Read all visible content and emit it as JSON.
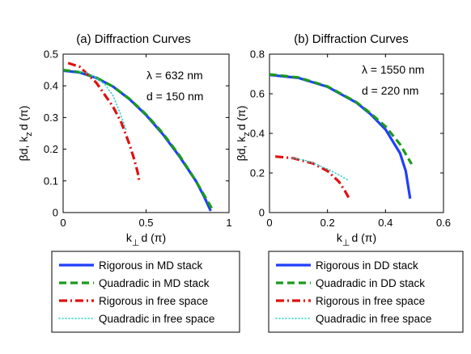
{
  "chart_data": [
    {
      "type": "line",
      "title": "(a)  Diffraction Curves",
      "xlabel_main": "k",
      "xlabel_sub": "⊥",
      "xlabel_rest": "d (π)",
      "ylabel_main": "βd,  k",
      "ylabel_sub": "z",
      "ylabel_rest": "d (π)",
      "xlim": [
        0,
        1
      ],
      "ylim": [
        0,
        0.5
      ],
      "xticks": [
        0,
        0.5,
        1
      ],
      "xtick_labels": [
        "0",
        "0.5",
        "1"
      ],
      "yticks": [
        0,
        0.1,
        0.2,
        0.3,
        0.4,
        0.5
      ],
      "ytick_labels": [
        "0",
        "0.1",
        "0.2",
        "0.3",
        "0.4",
        "0.5"
      ],
      "annotations": [
        "λ = 632 nm",
        "d = 150 nm"
      ],
      "series": [
        {
          "name": "Rigorous in MD stack",
          "color": "#1f3fff",
          "style": "solid",
          "x": [
            0,
            0.1,
            0.2,
            0.3,
            0.4,
            0.5,
            0.6,
            0.7,
            0.8,
            0.85,
            0.89
          ],
          "y": [
            0.448,
            0.442,
            0.425,
            0.398,
            0.358,
            0.308,
            0.248,
            0.178,
            0.1,
            0.05,
            0.005
          ]
        },
        {
          "name": "Quadradic in MD stack",
          "color": "#1a9a1a",
          "style": "dashed",
          "x": [
            0,
            0.1,
            0.2,
            0.3,
            0.4,
            0.5,
            0.6,
            0.7,
            0.8,
            0.9
          ],
          "y": [
            0.45,
            0.443,
            0.426,
            0.398,
            0.359,
            0.31,
            0.251,
            0.181,
            0.1,
            0.01
          ]
        },
        {
          "name": "Rigorous in free space",
          "color": "#e01010",
          "style": "dashdot",
          "x": [
            0.03,
            0.1,
            0.2,
            0.3,
            0.35,
            0.4,
            0.43,
            0.45,
            0.46
          ],
          "y": [
            0.472,
            0.46,
            0.41,
            0.335,
            0.285,
            0.215,
            0.165,
            0.125,
            0.095
          ]
        },
        {
          "name": "Quadradic in free space",
          "color": "#2bd3cf",
          "style": "dotted",
          "x": [
            0.1,
            0.15,
            0.2,
            0.25,
            0.3,
            0.35,
            0.38
          ],
          "y": [
            0.445,
            0.44,
            0.425,
            0.405,
            0.37,
            0.305,
            0.26
          ]
        }
      ]
    },
    {
      "type": "line",
      "title": "(b)  Diffraction Curves",
      "xlabel_main": "k",
      "xlabel_sub": "⊥",
      "xlabel_rest": "d (π)",
      "ylabel_main": "βd,  k",
      "ylabel_sub": "z",
      "ylabel_rest": "d (π)",
      "xlim": [
        0,
        0.6
      ],
      "ylim": [
        0,
        0.8
      ],
      "xticks": [
        0,
        0.2,
        0.4,
        0.6
      ],
      "xtick_labels": [
        "0",
        "0.2",
        "0.4",
        "0.6"
      ],
      "yticks": [
        0,
        0.2,
        0.4,
        0.6,
        0.8
      ],
      "ytick_labels": [
        "0",
        "0.2",
        "0.4",
        "0.6",
        "0.8"
      ],
      "annotations": [
        "λ = 1550 nm",
        "d = 220 nm"
      ],
      "series": [
        {
          "name": "Rigorous in DD stack",
          "color": "#1f3fff",
          "style": "solid",
          "x": [
            0,
            0.1,
            0.2,
            0.3,
            0.35,
            0.4,
            0.45,
            0.47,
            0.485
          ],
          "y": [
            0.695,
            0.68,
            0.635,
            0.555,
            0.495,
            0.42,
            0.3,
            0.21,
            0.07
          ]
        },
        {
          "name": "Quadradic in DD stack",
          "color": "#1a9a1a",
          "style": "dashed",
          "x": [
            0,
            0.1,
            0.2,
            0.3,
            0.35,
            0.4,
            0.45,
            0.49
          ],
          "y": [
            0.698,
            0.682,
            0.637,
            0.557,
            0.5,
            0.435,
            0.345,
            0.245
          ]
        },
        {
          "name": "Rigorous in free space",
          "color": "#e01010",
          "style": "dashdot",
          "x": [
            0.02,
            0.08,
            0.15,
            0.2,
            0.24,
            0.26,
            0.275
          ],
          "y": [
            0.283,
            0.275,
            0.248,
            0.21,
            0.155,
            0.11,
            0.07
          ]
        },
        {
          "name": "Quadradic in free space",
          "color": "#2bd3cf",
          "style": "dotted",
          "x": [
            0.08,
            0.12,
            0.16,
            0.2,
            0.24,
            0.27
          ],
          "y": [
            0.275,
            0.265,
            0.245,
            0.22,
            0.19,
            0.165
          ]
        }
      ]
    }
  ]
}
